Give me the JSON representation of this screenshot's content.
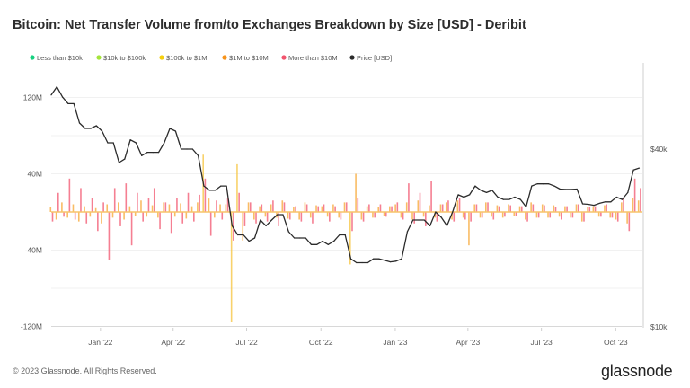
{
  "chart_data": {
    "type": "bar",
    "title": "Bitcoin: Net Transfer Volume from/to Exchanges Breakdown by Size [USD] - Deribit",
    "legend_placement": "top-left",
    "legend": [
      {
        "name": "Less than $10k",
        "color": "#16d17f"
      },
      {
        "name": "$10k to $100k",
        "color": "#a4e43a"
      },
      {
        "name": "$100k to $1M",
        "color": "#f5cf0f"
      },
      {
        "name": "$1M to $10M",
        "color": "#f7931a"
      },
      {
        "name": "More than $10M",
        "color": "#f2546d"
      },
      {
        "name": "Price [USD]",
        "color": "#2b2b2b"
      }
    ],
    "y_left": {
      "ticks": [
        {
          "v": 120,
          "label": "120M"
        },
        {
          "v": 40,
          "label": "40M"
        },
        {
          "v": -40,
          "label": "-40M"
        },
        {
          "v": -120,
          "label": "-120M"
        }
      ],
      "range": [
        -120,
        130
      ],
      "unit": "USD millions"
    },
    "y_right": {
      "scale": "log",
      "ticks": [
        {
          "v": 40000,
          "label": "$40k"
        },
        {
          "v": 10000,
          "label": "$10k"
        }
      ]
    },
    "x_ticks": [
      {
        "date": "2022-01-01",
        "label": "Jan '22"
      },
      {
        "date": "2022-04-01",
        "label": "Apr '22"
      },
      {
        "date": "2022-07-01",
        "label": "Jul '22"
      },
      {
        "date": "2022-10-01",
        "label": "Oct '22"
      },
      {
        "date": "2023-01-01",
        "label": "Jan '23"
      },
      {
        "date": "2023-04-01",
        "label": "Apr '23"
      },
      {
        "date": "2023-07-01",
        "label": "Jul '23"
      },
      {
        "date": "2023-10-01",
        "label": "Oct '23"
      }
    ],
    "x_range": [
      "2021-11-01",
      "2023-11-03"
    ],
    "grid": true,
    "x": [
      "2021-11-01",
      "2021-11-08",
      "2021-11-15",
      "2021-11-22",
      "2021-11-29",
      "2021-12-06",
      "2021-12-13",
      "2021-12-20",
      "2021-12-27",
      "2022-01-03",
      "2022-01-10",
      "2022-01-17",
      "2022-01-24",
      "2022-01-31",
      "2022-02-07",
      "2022-02-14",
      "2022-02-21",
      "2022-02-28",
      "2022-03-07",
      "2022-03-14",
      "2022-03-21",
      "2022-03-28",
      "2022-04-04",
      "2022-04-11",
      "2022-04-18",
      "2022-04-25",
      "2022-05-02",
      "2022-05-09",
      "2022-05-16",
      "2022-05-23",
      "2022-05-30",
      "2022-06-06",
      "2022-06-13",
      "2022-06-20",
      "2022-06-27",
      "2022-07-04",
      "2022-07-11",
      "2022-07-18",
      "2022-07-25",
      "2022-08-01",
      "2022-08-08",
      "2022-08-15",
      "2022-08-22",
      "2022-08-29",
      "2022-09-05",
      "2022-09-12",
      "2022-09-19",
      "2022-09-26",
      "2022-10-03",
      "2022-10-10",
      "2022-10-17",
      "2022-10-24",
      "2022-10-31",
      "2022-11-07",
      "2022-11-14",
      "2022-11-21",
      "2022-11-28",
      "2022-12-05",
      "2022-12-12",
      "2022-12-19",
      "2022-12-26",
      "2023-01-02",
      "2023-01-09",
      "2023-01-16",
      "2023-01-23",
      "2023-01-30",
      "2023-02-06",
      "2023-02-13",
      "2023-02-20",
      "2023-02-27",
      "2023-03-06",
      "2023-03-13",
      "2023-03-20",
      "2023-03-27",
      "2023-04-03",
      "2023-04-10",
      "2023-04-17",
      "2023-04-24",
      "2023-05-01",
      "2023-05-08",
      "2023-05-15",
      "2023-05-22",
      "2023-05-29",
      "2023-06-05",
      "2023-06-12",
      "2023-06-19",
      "2023-06-26",
      "2023-07-03",
      "2023-07-10",
      "2023-07-17",
      "2023-07-24",
      "2023-07-31",
      "2023-08-07",
      "2023-08-14",
      "2023-08-21",
      "2023-08-28",
      "2023-09-04",
      "2023-09-11",
      "2023-09-18",
      "2023-09-25",
      "2023-10-02",
      "2023-10-09",
      "2023-10-16",
      "2023-10-23",
      "2023-10-30"
    ],
    "price": [
      61000,
      65000,
      60000,
      57000,
      57000,
      49000,
      47000,
      47000,
      48000,
      46000,
      42000,
      42000,
      36000,
      37000,
      43000,
      42000,
      38000,
      39000,
      39000,
      39000,
      42000,
      47000,
      46000,
      40000,
      40000,
      40000,
      38000,
      30000,
      29000,
      29000,
      30000,
      30000,
      22000,
      20500,
      20500,
      19500,
      20000,
      23000,
      22000,
      23000,
      24000,
      24000,
      21000,
      20000,
      20000,
      20000,
      19000,
      19000,
      19500,
      19000,
      19500,
      20500,
      20500,
      17000,
      16500,
      16500,
      16500,
      17000,
      17000,
      16800,
      16600,
      16700,
      17000,
      21000,
      23000,
      23000,
      23000,
      22000,
      24500,
      23500,
      22000,
      24500,
      28000,
      27500,
      28000,
      30000,
      29000,
      28500,
      29000,
      27500,
      27000,
      27000,
      27500,
      27000,
      25500,
      30000,
      30500,
      30500,
      30500,
      30000,
      29300,
      29200,
      29200,
      29300,
      26100,
      26000,
      25800,
      26200,
      26500,
      26500,
      27500,
      27000,
      28500,
      34000,
      34500
    ],
    "series": [
      {
        "name": "$1M to $10M",
        "values": [
          5,
          -8,
          10,
          -6,
          8,
          -10,
          6,
          -5,
          4,
          -12,
          8,
          -6,
          10,
          -8,
          6,
          -4,
          12,
          -5,
          7,
          -6,
          10,
          8,
          -5,
          9,
          -7,
          6,
          10,
          60,
          14,
          -6,
          8,
          8,
          -115,
          50,
          -30,
          10,
          -8,
          6,
          -5,
          8,
          -6,
          12,
          -7,
          5,
          -8,
          10,
          -6,
          7,
          6,
          -5,
          8,
          -6,
          10,
          -55,
          40,
          -8,
          6,
          -6,
          5,
          -4,
          6,
          8,
          -6,
          10,
          -8,
          12,
          -5,
          7,
          -6,
          8,
          10,
          -8,
          12,
          -6,
          -35,
          8,
          -6,
          10,
          -5,
          7,
          -6,
          8,
          -4,
          6,
          -8,
          10,
          -6,
          8,
          -6,
          7,
          -5,
          6,
          -6,
          8,
          -10,
          5,
          6,
          -5,
          7,
          -6,
          -8,
          10,
          -12,
          15,
          12
        ]
      },
      {
        "name": "More than $10M",
        "values": [
          -10,
          20,
          -5,
          35,
          -8,
          25,
          -12,
          15,
          -20,
          10,
          -50,
          25,
          -15,
          30,
          -35,
          20,
          -10,
          15,
          25,
          -18,
          10,
          -22,
          15,
          -12,
          20,
          -10,
          18,
          35,
          -25,
          12,
          -8,
          15,
          -30,
          20,
          -15,
          10,
          -12,
          8,
          -10,
          12,
          -15,
          10,
          -8,
          6,
          -10,
          8,
          -12,
          6,
          8,
          -10,
          6,
          -8,
          10,
          -20,
          15,
          -10,
          8,
          -6,
          8,
          -5,
          6,
          10,
          -8,
          30,
          -12,
          20,
          -15,
          32,
          -10,
          8,
          12,
          -10,
          15,
          -8,
          -10,
          8,
          -6,
          10,
          -8,
          6,
          -5,
          7,
          -4,
          6,
          -10,
          8,
          -6,
          7,
          -6,
          5,
          -8,
          6,
          -6,
          8,
          -10,
          5,
          6,
          -5,
          8,
          -6,
          -10,
          15,
          -20,
          35,
          25
        ]
      }
    ]
  },
  "footer": {
    "copyright": "© 2023 Glassnode. All Rights Reserved.",
    "logo": "glassnode"
  }
}
